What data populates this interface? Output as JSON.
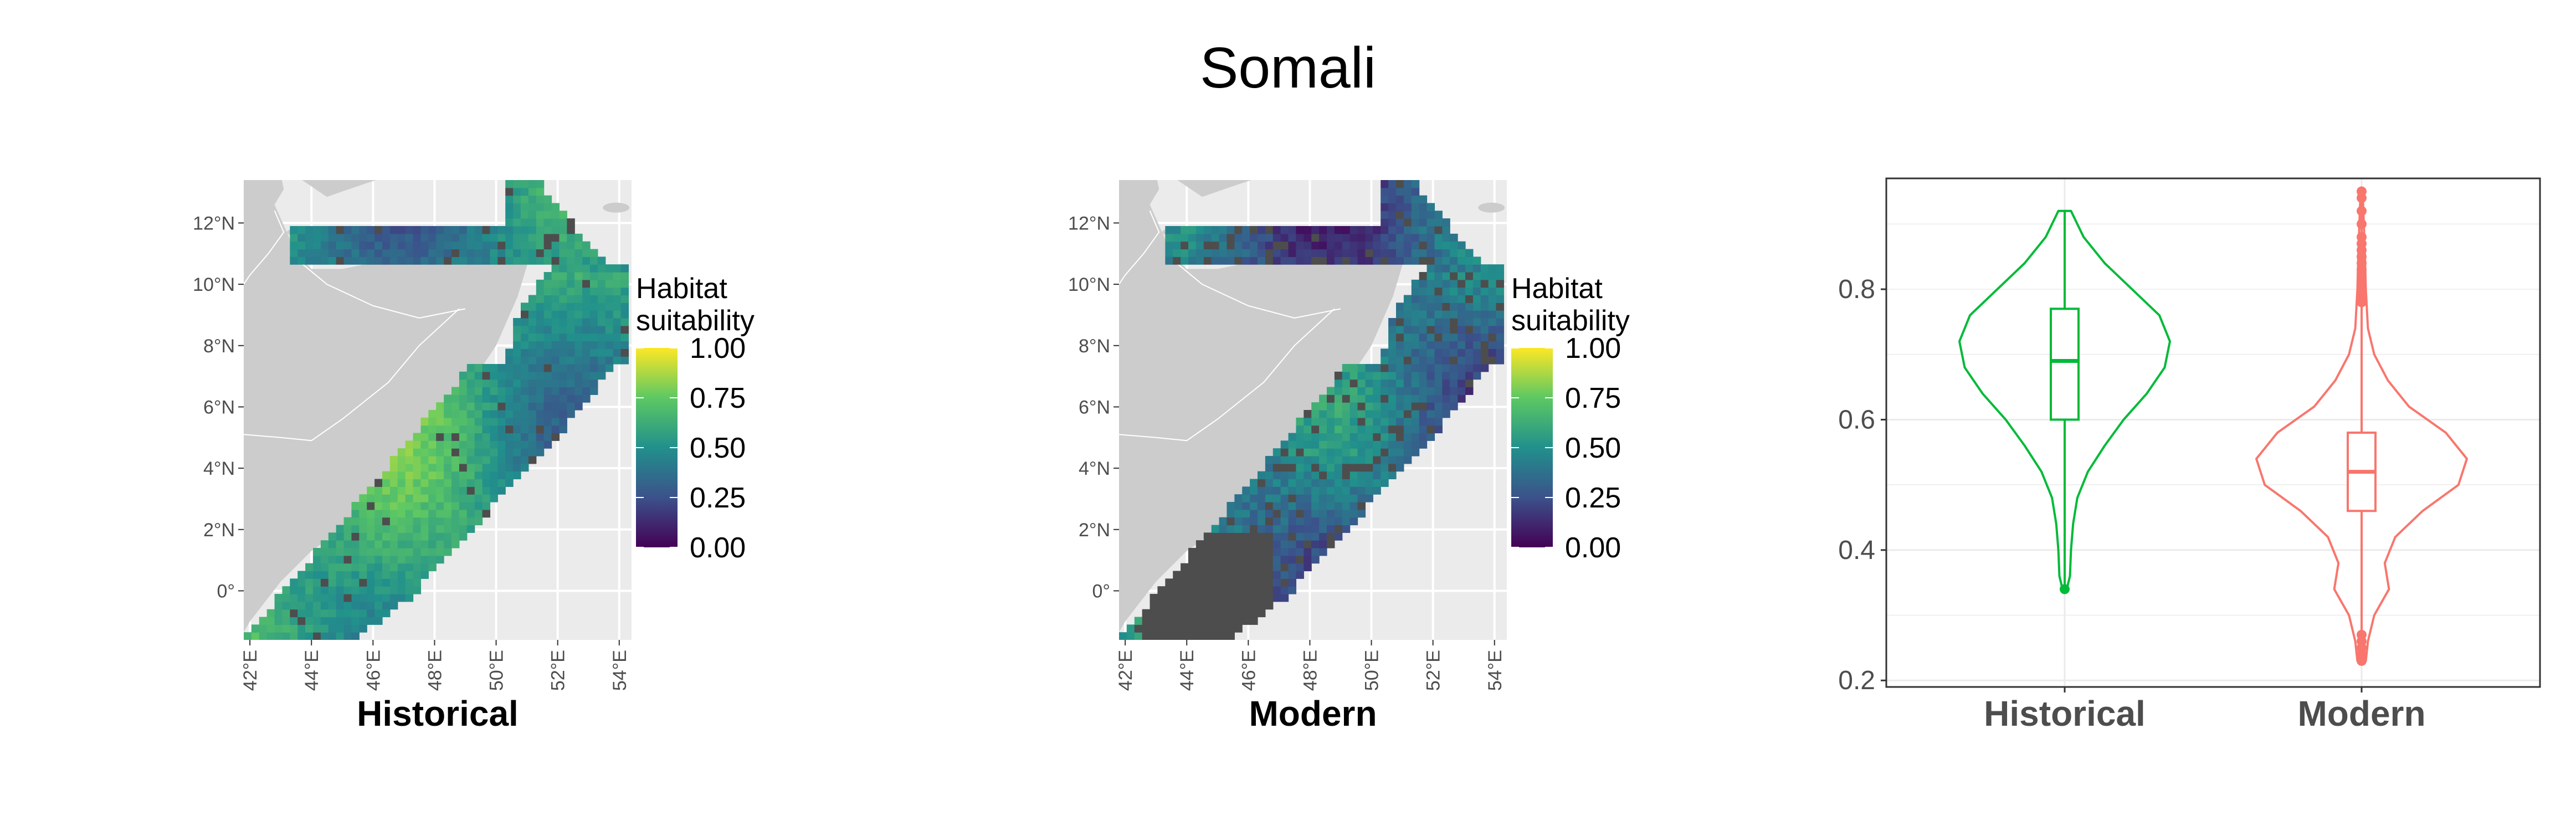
{
  "title": "Somali",
  "colors": {
    "panel_bg": "#ebebeb",
    "grid": "#ffffff",
    "land": "#cccccc",
    "missing": "#4d4d4d",
    "historical": "#00ba38",
    "modern": "#f8766d",
    "viridis": [
      "#440154",
      "#3b528b",
      "#21908c",
      "#5dc863",
      "#fde725"
    ]
  },
  "maps": [
    {
      "caption": "Historical",
      "legend_title": [
        "Habitat",
        "suitability"
      ],
      "legend_breaks": [
        "1.00",
        "0.75",
        "0.50",
        "0.25",
        "0.00"
      ]
    },
    {
      "caption": "Modern",
      "legend_title": [
        "Habitat",
        "suitability"
      ],
      "legend_breaks": [
        "1.00",
        "0.75",
        "0.50",
        "0.25",
        "0.00"
      ]
    }
  ],
  "lat_labels": [
    "12°N",
    "10°N",
    "8°N",
    "6°N",
    "4°N",
    "2°N",
    "0°"
  ],
  "lon_labels": [
    "42°E",
    "44°E",
    "46°E",
    "48°E",
    "50°E",
    "52°E",
    "54°E"
  ],
  "chart_data": [
    {
      "type": "heatmap",
      "caption": "Historical",
      "x_ticks": [
        "42°E",
        "44°E",
        "46°E",
        "48°E",
        "50°E",
        "52°E",
        "54°E"
      ],
      "y_ticks": [
        "12°N",
        "10°N",
        "8°N",
        "6°N",
        "4°N",
        "2°N",
        "0°"
      ],
      "xlim": [
        41.8,
        54.4
      ],
      "ylim": [
        -1.6,
        13.4
      ],
      "color_scale": {
        "title": "Habitat suitability",
        "range": [
          0,
          1
        ],
        "palette": "viridis",
        "breaks": [
          0,
          0.25,
          0.5,
          0.75,
          1
        ]
      },
      "value_range": [
        0.34,
        0.92
      ],
      "median": 0.69
    },
    {
      "type": "heatmap",
      "caption": "Modern",
      "x_ticks": [
        "42°E",
        "44°E",
        "46°E",
        "48°E",
        "50°E",
        "52°E",
        "54°E"
      ],
      "y_ticks": [
        "12°N",
        "10°N",
        "8°N",
        "6°N",
        "4°N",
        "2°N",
        "0°"
      ],
      "xlim": [
        41.8,
        54.4
      ],
      "ylim": [
        -1.6,
        13.4
      ],
      "color_scale": {
        "title": "Habitat suitability",
        "range": [
          0,
          1
        ],
        "palette": "viridis",
        "breaks": [
          0,
          0.25,
          0.5,
          0.75,
          1
        ]
      },
      "value_range": [
        0.23,
        0.95
      ],
      "median": 0.52
    },
    {
      "type": "violin",
      "categories": [
        "Historical",
        "Modern"
      ],
      "y_ticks": [
        "0.2",
        "0.4",
        "0.6",
        "0.8"
      ],
      "ylim": [
        0.19,
        0.97
      ],
      "grid": true,
      "series": [
        {
          "name": "Historical",
          "color": "#00ba38",
          "min": 0.34,
          "q1": 0.6,
          "median": 0.69,
          "q3": 0.77,
          "max": 0.92,
          "density_y": [
            0.34,
            0.36,
            0.4,
            0.44,
            0.48,
            0.52,
            0.56,
            0.6,
            0.64,
            0.68,
            0.72,
            0.76,
            0.8,
            0.84,
            0.88,
            0.92
          ],
          "density_w": [
            0.02,
            0.05,
            0.06,
            0.08,
            0.12,
            0.22,
            0.38,
            0.56,
            0.78,
            0.95,
            1.0,
            0.9,
            0.64,
            0.38,
            0.18,
            0.06
          ],
          "outliers": [
            0.34
          ]
        },
        {
          "name": "Modern",
          "color": "#f8766d",
          "min": 0.23,
          "q1": 0.46,
          "median": 0.52,
          "q3": 0.58,
          "max": 0.95,
          "density_y": [
            0.23,
            0.26,
            0.3,
            0.34,
            0.38,
            0.42,
            0.46,
            0.5,
            0.54,
            0.58,
            0.62,
            0.66,
            0.7,
            0.74,
            0.8,
            0.86,
            0.95
          ],
          "density_w": [
            0.04,
            0.06,
            0.12,
            0.26,
            0.22,
            0.32,
            0.58,
            0.92,
            1.0,
            0.8,
            0.45,
            0.25,
            0.12,
            0.06,
            0.04,
            0.03,
            0.01
          ],
          "outliers": [
            0.95,
            0.94,
            0.92,
            0.9,
            0.88,
            0.87,
            0.86,
            0.85,
            0.84,
            0.83,
            0.82,
            0.81,
            0.8,
            0.79,
            0.78,
            0.27,
            0.26,
            0.25,
            0.24,
            0.23
          ]
        }
      ]
    }
  ]
}
